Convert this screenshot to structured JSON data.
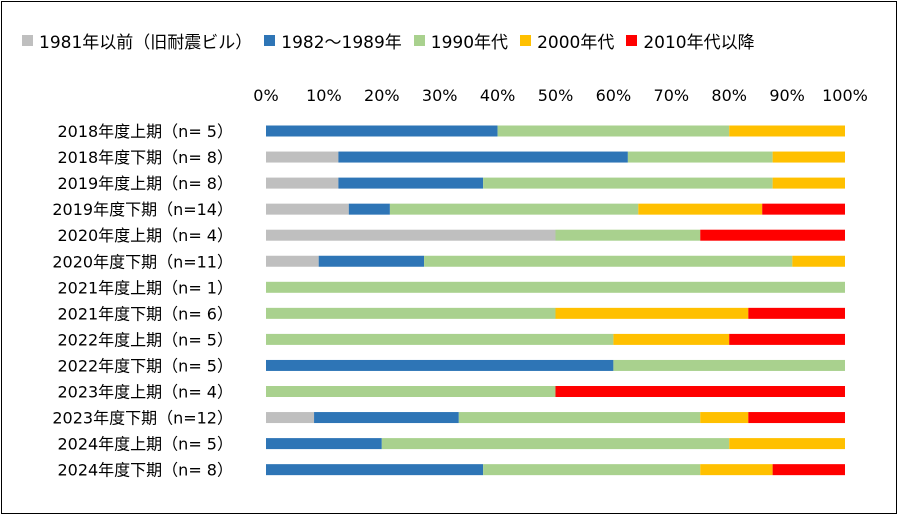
{
  "chart_data": {
    "type": "bar",
    "orientation": "horizontal",
    "stacked": "percent",
    "legend_position": "top",
    "grid": false,
    "xlim": [
      0,
      100
    ],
    "x_ticks": [
      "0%",
      "10%",
      "20%",
      "30%",
      "40%",
      "50%",
      "60%",
      "70%",
      "80%",
      "90%",
      "100%"
    ],
    "categories": [
      "2018年度上期（n=  5）",
      "2018年度下期（n=  8）",
      "2019年度上期（n=  8）",
      "2019年度下期（n=14）",
      "2020年度上期（n=  4）",
      "2020年度下期（n=11）",
      "2021年度上期（n=  1）",
      "2021年度下期（n=  6）",
      "2022年度上期（n=  5）",
      "2022年度下期（n=  5）",
      "2023年度上期（n=  4）",
      "2023年度下期（n=12）",
      "2024年度上期（n=  5）",
      "2024年度下期（n=  8）"
    ],
    "series": [
      {
        "name": "1981年以前（旧耐震ビル）",
        "color": "#bfbfbf",
        "values": [
          0,
          12.5,
          12.5,
          14.3,
          50,
          9.1,
          0,
          0,
          0,
          0,
          0,
          8.3,
          0,
          0
        ]
      },
      {
        "name": "1982～1989年",
        "color": "#2e75b6",
        "values": [
          40,
          50,
          25,
          7.1,
          0,
          18.2,
          0,
          0,
          0,
          60,
          0,
          25,
          20,
          37.5
        ]
      },
      {
        "name": "1990年代",
        "color": "#a9d18e",
        "values": [
          40,
          25,
          50,
          42.9,
          25,
          63.6,
          100,
          50,
          60,
          40,
          50,
          41.7,
          60,
          37.5
        ]
      },
      {
        "name": "2000年代",
        "color": "#ffc000",
        "values": [
          20,
          12.5,
          12.5,
          21.4,
          0,
          9.1,
          0,
          33.3,
          20,
          0,
          0,
          8.3,
          20,
          12.5
        ]
      },
      {
        "name": "2010年代以降",
        "color": "#ff0000",
        "values": [
          0,
          0,
          0,
          14.3,
          25,
          0,
          0,
          16.7,
          20,
          0,
          50,
          16.7,
          0,
          12.5
        ]
      }
    ]
  }
}
